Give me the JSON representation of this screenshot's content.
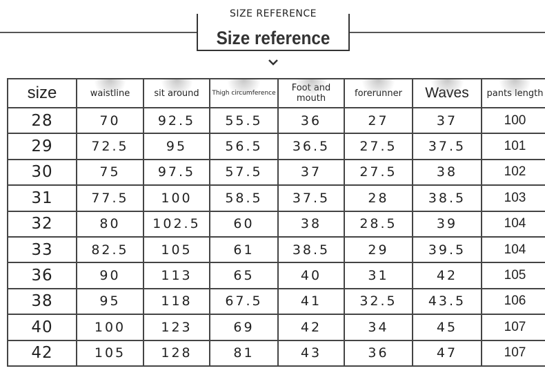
{
  "header": {
    "kicker": "SIZE REFERENCE",
    "title": "Size reference"
  },
  "table": {
    "columns": [
      "size",
      "waistline",
      "sit around",
      "Thigh circumference",
      "Foot and mouth",
      "forerunner",
      "Waves",
      "pants length"
    ],
    "rows": [
      [
        "28",
        "70",
        "92.5",
        "55.5",
        "36",
        "27",
        "37",
        "100"
      ],
      [
        "29",
        "72.5",
        "95",
        "56.5",
        "36.5",
        "27.5",
        "37.5",
        "101"
      ],
      [
        "30",
        "75",
        "97.5",
        "57.5",
        "37",
        "27.5",
        "38",
        "102"
      ],
      [
        "31",
        "77.5",
        "100",
        "58.5",
        "37.5",
        "28",
        "38.5",
        "103"
      ],
      [
        "32",
        "80",
        "102.5",
        "60",
        "38",
        "28.5",
        "39",
        "104"
      ],
      [
        "33",
        "82.5",
        "105",
        "61",
        "38.5",
        "29",
        "39.5",
        "104"
      ],
      [
        "36",
        "90",
        "113",
        "65",
        "40",
        "31",
        "42",
        "105"
      ],
      [
        "38",
        "95",
        "118",
        "67.5",
        "41",
        "32.5",
        "43.5",
        "106"
      ],
      [
        "40",
        "100",
        "123",
        "69",
        "42",
        "34",
        "45",
        "107"
      ],
      [
        "42",
        "105",
        "128",
        "81",
        "43",
        "36",
        "47",
        "107"
      ]
    ]
  }
}
